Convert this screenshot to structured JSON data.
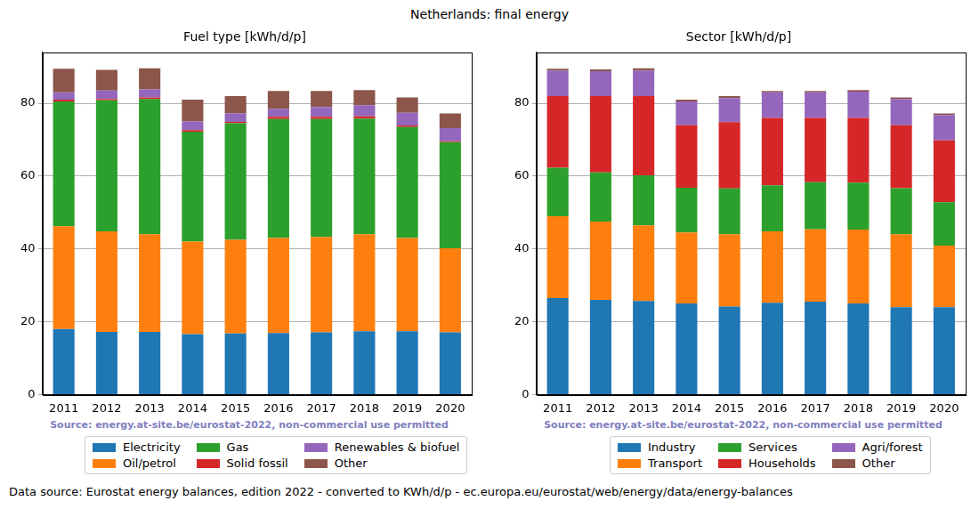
{
  "title": "Netherlands: final energy",
  "footnote": "Data source: Eurostat energy balances, edition 2022 - converted to KWh/d/p - ec.europa.eu/eurostat/web/energy/data/energy-balances",
  "chart_data": [
    {
      "type": "bar",
      "title": "Fuel type [kWh/d/p]",
      "annotation": "Source: energy.at-site.be/eurostat-2022, non-commercial use permitted",
      "categories": [
        "2011",
        "2012",
        "2013",
        "2014",
        "2015",
        "2016",
        "2017",
        "2018",
        "2019",
        "2020"
      ],
      "series": [
        {
          "name": "Electricity",
          "color": "#1f77b4",
          "values": [
            18,
            17.2,
            17.2,
            16.6,
            16.8,
            16.9,
            17.1,
            17.4,
            17.4,
            17.1
          ]
        },
        {
          "name": "Oil/petrol",
          "color": "#ff7f0e",
          "values": [
            28.2,
            27.6,
            26.8,
            25.4,
            25.7,
            26.1,
            26.2,
            26.6,
            25.6,
            23.1
          ]
        },
        {
          "name": "Gas",
          "color": "#2ca02c",
          "values": [
            34.3,
            36,
            37.2,
            30.2,
            32,
            32.7,
            32.4,
            31.8,
            30.5,
            29.1
          ]
        },
        {
          "name": "Solid fossil",
          "color": "#d62728",
          "values": [
            0.5,
            0.4,
            0.4,
            0.4,
            0.4,
            0.6,
            0.6,
            0.6,
            0.4,
            0.3
          ]
        },
        {
          "name": "Renewables & biofuel",
          "color": "#9467bd",
          "values": [
            2,
            2.3,
            2.2,
            2.4,
            2.3,
            2.2,
            2.7,
            3.1,
            3.5,
            3.6
          ]
        },
        {
          "name": "Other",
          "color": "#8c564b",
          "values": [
            6.5,
            5.7,
            5.8,
            6,
            4.8,
            4.9,
            4.4,
            4.1,
            4.2,
            4
          ]
        }
      ],
      "ylim": [
        0,
        94
      ],
      "yticks": [
        0,
        20,
        40,
        60,
        80
      ],
      "grid": "y",
      "stacked": true,
      "legend": "bottom"
    },
    {
      "type": "bar",
      "title": "Sector [kWh/d/p]",
      "annotation": "Source: energy.at-site.be/eurostat-2022, non-commercial use permitted",
      "categories": [
        "2011",
        "2012",
        "2013",
        "2014",
        "2015",
        "2016",
        "2017",
        "2018",
        "2019",
        "2020"
      ],
      "series": [
        {
          "name": "Industry",
          "color": "#1f77b4",
          "values": [
            26.5,
            26,
            25.7,
            25,
            24.2,
            25.2,
            25.5,
            25,
            24,
            24
          ]
        },
        {
          "name": "Transport",
          "color": "#ff7f0e",
          "values": [
            22.5,
            21.5,
            20.8,
            19.5,
            19.8,
            19.6,
            19.9,
            20.3,
            20,
            16.9
          ]
        },
        {
          "name": "Services",
          "color": "#2ca02c",
          "values": [
            13.3,
            13.5,
            13.7,
            12.3,
            12.6,
            12.7,
            12.9,
            12.9,
            12.7,
            11.9
          ]
        },
        {
          "name": "Households",
          "color": "#d62728",
          "values": [
            19.7,
            21,
            21.8,
            17.2,
            18.2,
            18.5,
            17.7,
            17.8,
            17.3,
            17
          ]
        },
        {
          "name": "Agri/forest",
          "color": "#9467bd",
          "values": [
            7,
            6.8,
            7,
            6.5,
            6.6,
            7,
            7,
            7.2,
            7.2,
            7
          ]
        },
        {
          "name": "Other",
          "color": "#8c564b",
          "values": [
            0.5,
            0.5,
            0.6,
            0.5,
            0.6,
            0.4,
            0.4,
            0.4,
            0.4,
            0.4
          ]
        }
      ],
      "ylim": [
        0,
        94
      ],
      "yticks": [
        0,
        20,
        40,
        60,
        80
      ],
      "grid": "y",
      "stacked": true,
      "legend": "bottom"
    }
  ]
}
